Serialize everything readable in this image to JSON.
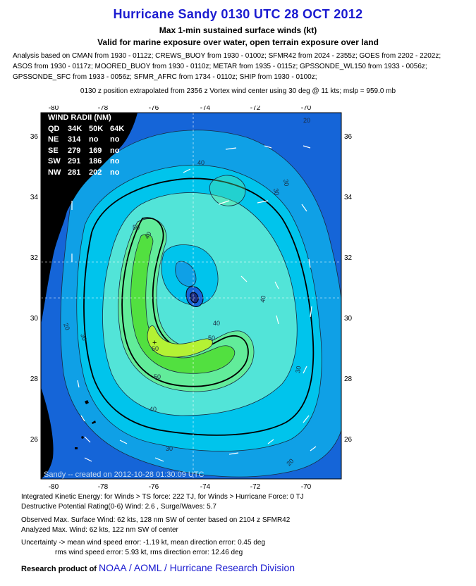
{
  "title": "Hurricane Sandy 0130 UTC 28 OCT 2012",
  "subtitle1": "Max 1-min sustained surface winds (kt)",
  "subtitle2": "Valid for marine exposure over water, open terrain exposure over land",
  "analysis_lines": [
    "Analysis based on CMAN from 1930 - 0112z; CREWS_BUOY from 1930 - 0100z; SFMR42 from 2024 - 2355z; GOES from 2202 - 2202z;",
    "ASOS from 1930 - 0117z; MOORED_BUOY from 1930 - 0110z; METAR from 1935 - 0115z; GPSSONDE_WL150 from 1933 - 0056z;",
    "GPSSONDE_SFC from 1933 - 0056z; SFMR_AFRC from 1734 - 0110z; SHIP from 1930 - 0100z;"
  ],
  "position_note": "0130 z position extrapolated from 2356 z Vortex wind center using 30 deg @ 11 kts; mslp = 959.0 mb",
  "map": {
    "lon_ticks": [
      "-80",
      "-78",
      "-76",
      "-74",
      "-72",
      "-70"
    ],
    "lat_ticks": [
      "36",
      "34",
      "32",
      "30",
      "28",
      "26"
    ],
    "contour_labels": [
      "40",
      "30",
      "20",
      "50",
      "60",
      "40",
      "30",
      "30",
      "50",
      "40",
      "20",
      "40",
      "30",
      "50",
      "40",
      "30",
      "20"
    ],
    "credit_line": "Sandy -- created on 2012-10-28 01:30:09 UTC",
    "colors": {
      "ocean_dark": "#1565d8",
      "c20": "#0fa0e6",
      "c30": "#00c4ec",
      "c40": "#52e4d8",
      "c50": "#62ec9a",
      "c60": "#52e040",
      "c65": "#b4f234",
      "land": "#000000"
    }
  },
  "wind_radii": {
    "title": "WIND RADII (NM)",
    "header": [
      "QD",
      "34K",
      "50K",
      "64K"
    ],
    "rows": [
      [
        "NE",
        "314",
        "no",
        "no"
      ],
      [
        "SE",
        "279",
        "169",
        "no"
      ],
      [
        "SW",
        "291",
        "186",
        "no"
      ],
      [
        "NW",
        "281",
        "202",
        "no"
      ]
    ]
  },
  "footer": {
    "ike": "Integrated Kinetic Energy: for Winds > TS force: 222 TJ, for Winds > Hurricane Force: 0 TJ",
    "dpr": "Destructive Potential Rating(0-6)  Wind: 2.6 , Surge/Waves: 5.7",
    "obs_max": "Observed Max. Surface Wind: 62 kts, 128 nm SW of center based on 2104 z SFMR42",
    "analyzed_max": "Analyzed Max. Wind: 62 kts, 122 nm  SW of center",
    "uncertainty1": "Uncertainty -> mean wind speed error:  -1.19 kt, mean direction error: 0.45 deg",
    "uncertainty2": "rms wind speed error: 5.93 kt, rms direction error: 12.46 deg",
    "research": "Research product of",
    "org": "NOAA / AOML / Hurricane Research Division"
  }
}
